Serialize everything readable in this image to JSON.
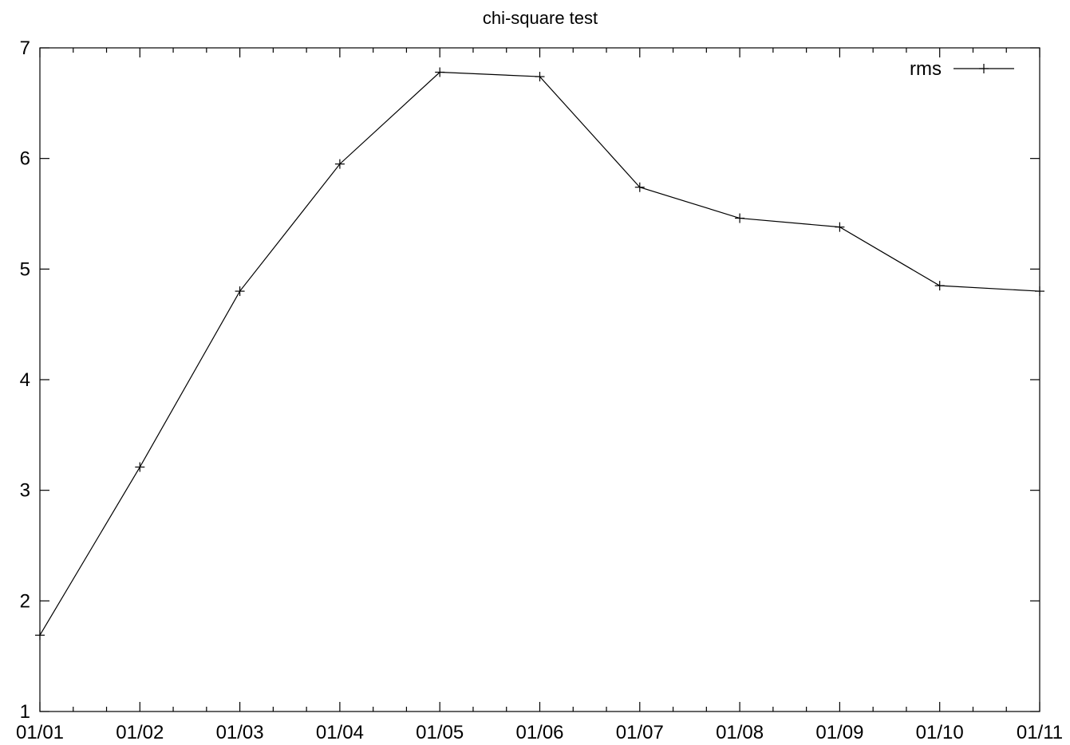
{
  "chart_data": {
    "type": "line",
    "title": "chi-square test",
    "xlabel": "",
    "ylabel": "",
    "x": [
      "01/01",
      "01/02",
      "01/03",
      "01/04",
      "01/05",
      "01/06",
      "01/07",
      "01/08",
      "01/09",
      "01/10",
      "01/11"
    ],
    "x_tick_labels": [
      "01/01",
      "01/02",
      "01/03",
      "01/04",
      "01/05",
      "01/06",
      "01/07",
      "01/08",
      "01/09",
      "01/10",
      "01/11"
    ],
    "y_ticks": [
      "1",
      "2",
      "3",
      "4",
      "5",
      "6",
      "7"
    ],
    "ylim": [
      1,
      7
    ],
    "grid": false,
    "legend_position": "top-right",
    "series": [
      {
        "name": "rms",
        "marker": "plus",
        "color": "#000000",
        "values": [
          1.69,
          3.21,
          4.8,
          5.95,
          6.78,
          6.74,
          5.74,
          5.46,
          5.38,
          4.85,
          4.8
        ]
      }
    ]
  }
}
